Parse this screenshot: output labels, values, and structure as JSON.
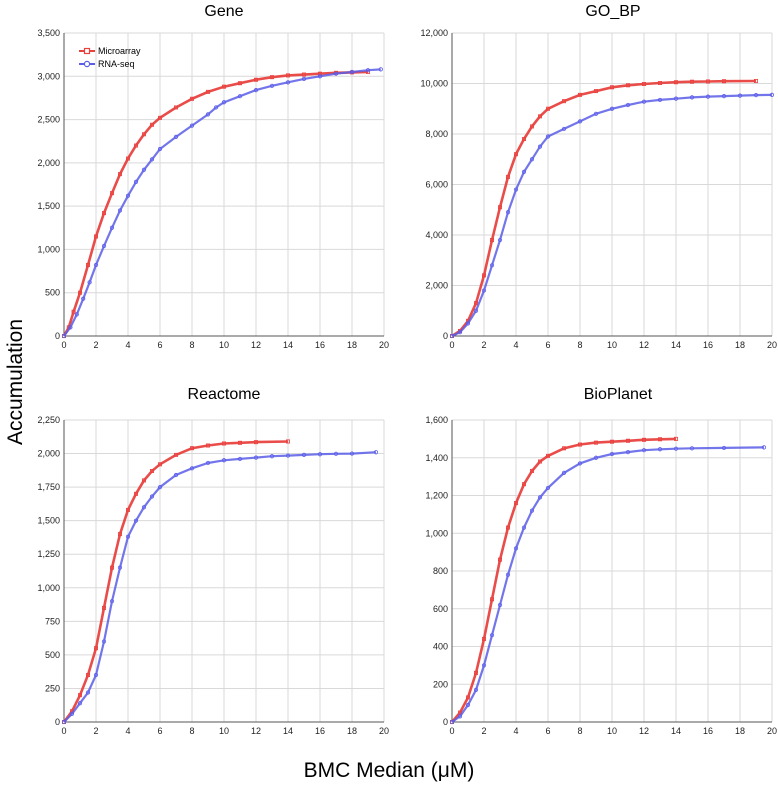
{
  "figure": {
    "ylabel": "Accumulation",
    "xlabel": "BMC Median (μM)"
  },
  "legend": [
    {
      "name": "Microarray",
      "color": "#e8423f",
      "marker": "square"
    },
    {
      "name": "RNA-seq",
      "color": "#5a5de8",
      "marker": "circle"
    }
  ],
  "chart_data": [
    {
      "type": "line",
      "title": "Gene",
      "xlim": [
        0,
        20
      ],
      "ylim": [
        0,
        3500
      ],
      "xticks": [
        "0",
        "2",
        "4",
        "6",
        "8",
        "10",
        "12",
        "14",
        "16",
        "18",
        "20"
      ],
      "yticks": [
        "0",
        "500",
        "1,000",
        "1,500",
        "2,000",
        "2,500",
        "3,000",
        "3,500"
      ],
      "grid": true,
      "legend_position": "top-left",
      "series": [
        {
          "name": "Microarray",
          "color": "#e8423f",
          "points": [
            [
              0,
              0
            ],
            [
              0.3,
              100
            ],
            [
              0.6,
              280
            ],
            [
              1,
              500
            ],
            [
              1.5,
              820
            ],
            [
              2,
              1150
            ],
            [
              2.5,
              1420
            ],
            [
              3,
              1650
            ],
            [
              3.5,
              1870
            ],
            [
              4,
              2050
            ],
            [
              4.5,
              2200
            ],
            [
              5,
              2330
            ],
            [
              5.5,
              2440
            ],
            [
              6,
              2520
            ],
            [
              7,
              2640
            ],
            [
              8,
              2740
            ],
            [
              9,
              2820
            ],
            [
              10,
              2880
            ],
            [
              11,
              2920
            ],
            [
              12,
              2960
            ],
            [
              13,
              2990
            ],
            [
              14,
              3010
            ],
            [
              15,
              3020
            ],
            [
              16,
              3030
            ],
            [
              17,
              3040
            ],
            [
              18,
              3045
            ],
            [
              19,
              3050
            ]
          ]
        },
        {
          "name": "RNA-seq",
          "color": "#5a5de8",
          "points": [
            [
              0,
              0
            ],
            [
              0.4,
              100
            ],
            [
              0.8,
              250
            ],
            [
              1.2,
              430
            ],
            [
              1.6,
              620
            ],
            [
              2,
              820
            ],
            [
              2.5,
              1040
            ],
            [
              3,
              1250
            ],
            [
              3.5,
              1450
            ],
            [
              4,
              1620
            ],
            [
              4.5,
              1780
            ],
            [
              5,
              1920
            ],
            [
              5.5,
              2040
            ],
            [
              6,
              2160
            ],
            [
              7,
              2300
            ],
            [
              8,
              2430
            ],
            [
              9,
              2560
            ],
            [
              9.5,
              2640
            ],
            [
              10,
              2700
            ],
            [
              11,
              2770
            ],
            [
              12,
              2840
            ],
            [
              13,
              2890
            ],
            [
              14,
              2930
            ],
            [
              15,
              2970
            ],
            [
              16,
              3000
            ],
            [
              17,
              3030
            ],
            [
              18,
              3050
            ],
            [
              19,
              3070
            ],
            [
              19.8,
              3080
            ]
          ]
        }
      ]
    },
    {
      "type": "line",
      "title": "GO_BP",
      "xlim": [
        0,
        20
      ],
      "ylim": [
        0,
        12000
      ],
      "xticks": [
        "0",
        "2",
        "4",
        "6",
        "8",
        "10",
        "12",
        "14",
        "16",
        "18",
        "20"
      ],
      "yticks": [
        "0",
        "2,000",
        "4,000",
        "6,000",
        "8,000",
        "10,000",
        "12,000"
      ],
      "grid": true,
      "series": [
        {
          "name": "Microarray",
          "color": "#e8423f",
          "points": [
            [
              0,
              0
            ],
            [
              0.5,
              200
            ],
            [
              1,
              600
            ],
            [
              1.5,
              1300
            ],
            [
              2,
              2400
            ],
            [
              2.5,
              3800
            ],
            [
              3,
              5100
            ],
            [
              3.5,
              6300
            ],
            [
              4,
              7200
            ],
            [
              4.5,
              7800
            ],
            [
              5,
              8300
            ],
            [
              5.5,
              8700
            ],
            [
              6,
              9000
            ],
            [
              7,
              9300
            ],
            [
              8,
              9550
            ],
            [
              9,
              9700
            ],
            [
              10,
              9850
            ],
            [
              11,
              9930
            ],
            [
              12,
              9980
            ],
            [
              13,
              10020
            ],
            [
              14,
              10050
            ],
            [
              15,
              10070
            ],
            [
              16,
              10080
            ],
            [
              17,
              10090
            ],
            [
              19,
              10100
            ]
          ]
        },
        {
          "name": "RNA-seq",
          "color": "#5a5de8",
          "points": [
            [
              0,
              0
            ],
            [
              0.5,
              150
            ],
            [
              1,
              500
            ],
            [
              1.5,
              1000
            ],
            [
              2,
              1800
            ],
            [
              2.5,
              2800
            ],
            [
              3,
              3800
            ],
            [
              3.5,
              4900
            ],
            [
              4,
              5800
            ],
            [
              4.5,
              6500
            ],
            [
              5,
              7000
            ],
            [
              5.5,
              7500
            ],
            [
              6,
              7900
            ],
            [
              7,
              8200
            ],
            [
              8,
              8500
            ],
            [
              9,
              8800
            ],
            [
              10,
              9000
            ],
            [
              11,
              9150
            ],
            [
              12,
              9280
            ],
            [
              13,
              9350
            ],
            [
              14,
              9400
            ],
            [
              15,
              9450
            ],
            [
              16,
              9480
            ],
            [
              17,
              9500
            ],
            [
              18,
              9520
            ],
            [
              19,
              9540
            ],
            [
              20,
              9550
            ]
          ]
        }
      ]
    },
    {
      "type": "line",
      "title": "Reactome",
      "xlim": [
        0,
        20
      ],
      "ylim": [
        0,
        2250
      ],
      "xticks": [
        "0",
        "2",
        "4",
        "6",
        "8",
        "10",
        "12",
        "14",
        "16",
        "18",
        "20"
      ],
      "yticks": [
        "0",
        "250",
        "500",
        "750",
        "1,000",
        "1,250",
        "1,500",
        "1,750",
        "2,000",
        "2,250"
      ],
      "grid": true,
      "series": [
        {
          "name": "Microarray",
          "color": "#e8423f",
          "points": [
            [
              0,
              0
            ],
            [
              0.5,
              80
            ],
            [
              1,
              200
            ],
            [
              1.5,
              350
            ],
            [
              2,
              550
            ],
            [
              2.5,
              850
            ],
            [
              3,
              1150
            ],
            [
              3.5,
              1400
            ],
            [
              4,
              1580
            ],
            [
              4.5,
              1700
            ],
            [
              5,
              1800
            ],
            [
              5.5,
              1870
            ],
            [
              6,
              1920
            ],
            [
              7,
              1990
            ],
            [
              8,
              2040
            ],
            [
              9,
              2060
            ],
            [
              10,
              2075
            ],
            [
              11,
              2080
            ],
            [
              12,
              2085
            ],
            [
              14,
              2090
            ]
          ]
        },
        {
          "name": "RNA-seq",
          "color": "#5a5de8",
          "points": [
            [
              0,
              0
            ],
            [
              0.5,
              60
            ],
            [
              1,
              140
            ],
            [
              1.5,
              220
            ],
            [
              2,
              350
            ],
            [
              2.5,
              600
            ],
            [
              3,
              900
            ],
            [
              3.5,
              1150
            ],
            [
              4,
              1380
            ],
            [
              4.5,
              1500
            ],
            [
              5,
              1600
            ],
            [
              5.5,
              1680
            ],
            [
              6,
              1750
            ],
            [
              7,
              1840
            ],
            [
              8,
              1890
            ],
            [
              9,
              1930
            ],
            [
              10,
              1950
            ],
            [
              11,
              1960
            ],
            [
              12,
              1970
            ],
            [
              13,
              1980
            ],
            [
              14,
              1985
            ],
            [
              15,
              1990
            ],
            [
              16,
              1995
            ],
            [
              17,
              1998
            ],
            [
              18,
              2000
            ],
            [
              19.5,
              2010
            ]
          ]
        }
      ]
    },
    {
      "type": "line",
      "title": "BioPlanet",
      "xlim": [
        0,
        20
      ],
      "ylim": [
        0,
        1600
      ],
      "xticks": [
        "0",
        "2",
        "4",
        "6",
        "8",
        "10",
        "12",
        "14",
        "16",
        "18",
        "20"
      ],
      "yticks": [
        "0",
        "200",
        "400",
        "600",
        "800",
        "1,000",
        "1,200",
        "1,400",
        "1,600"
      ],
      "grid": true,
      "series": [
        {
          "name": "Microarray",
          "color": "#e8423f",
          "points": [
            [
              0,
              0
            ],
            [
              0.5,
              50
            ],
            [
              1,
              130
            ],
            [
              1.5,
              260
            ],
            [
              2,
              440
            ],
            [
              2.5,
              650
            ],
            [
              3,
              860
            ],
            [
              3.5,
              1030
            ],
            [
              4,
              1160
            ],
            [
              4.5,
              1260
            ],
            [
              5,
              1330
            ],
            [
              5.5,
              1380
            ],
            [
              6,
              1410
            ],
            [
              7,
              1450
            ],
            [
              8,
              1470
            ],
            [
              9,
              1480
            ],
            [
              10,
              1485
            ],
            [
              11,
              1490
            ],
            [
              12,
              1495
            ],
            [
              13,
              1498
            ],
            [
              14,
              1500
            ]
          ]
        },
        {
          "name": "RNA-seq",
          "color": "#5a5de8",
          "points": [
            [
              0,
              0
            ],
            [
              0.5,
              30
            ],
            [
              1,
              90
            ],
            [
              1.5,
              170
            ],
            [
              2,
              300
            ],
            [
              2.5,
              460
            ],
            [
              3,
              620
            ],
            [
              3.5,
              780
            ],
            [
              4,
              920
            ],
            [
              4.5,
              1030
            ],
            [
              5,
              1120
            ],
            [
              5.5,
              1190
            ],
            [
              6,
              1240
            ],
            [
              7,
              1320
            ],
            [
              8,
              1370
            ],
            [
              9,
              1400
            ],
            [
              10,
              1420
            ],
            [
              11,
              1430
            ],
            [
              12,
              1440
            ],
            [
              13,
              1445
            ],
            [
              14,
              1448
            ],
            [
              15,
              1450
            ],
            [
              17,
              1452
            ],
            [
              19.5,
              1455
            ]
          ]
        }
      ]
    }
  ]
}
